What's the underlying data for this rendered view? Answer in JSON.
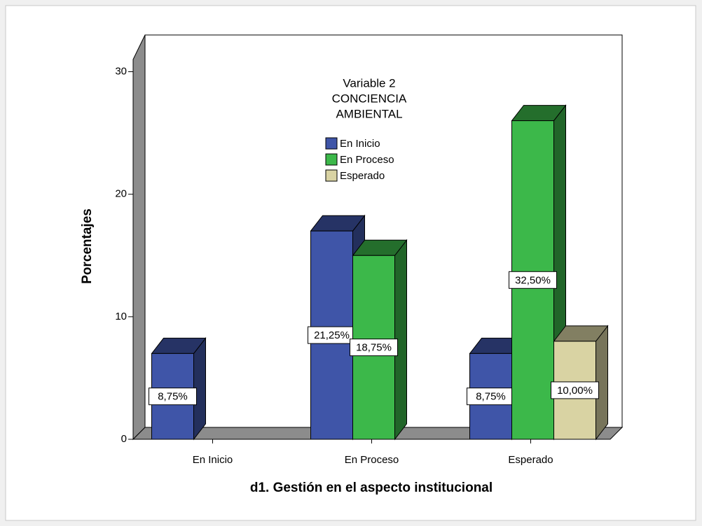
{
  "chart_data": {
    "type": "bar3d",
    "xlabel": "d1. Gestión en el aspecto institucional",
    "ylabel": "Porcentajes",
    "legend_title": [
      "Variable 2",
      "CONCIENCIA",
      "AMBIENTAL"
    ],
    "categories": [
      "En Inicio",
      "En Proceso",
      "Esperado"
    ],
    "series": [
      {
        "name": "En Inicio",
        "color": "#3f55a8",
        "values": [
          7,
          17,
          7
        ],
        "value_labels": [
          "8,75%",
          "21,25%",
          "8,75%"
        ]
      },
      {
        "name": "En Proceso",
        "color": "#3cb84a",
        "values": [
          null,
          15,
          26
        ],
        "value_labels": [
          null,
          "18,75%",
          "32,50%"
        ]
      },
      {
        "name": "Esperado",
        "color": "#d9d3a3",
        "values": [
          null,
          null,
          8
        ],
        "value_labels": [
          null,
          null,
          "10,00%"
        ]
      }
    ],
    "ylim": [
      0,
      31
    ],
    "yticks": [
      0,
      10,
      20,
      30
    ]
  }
}
